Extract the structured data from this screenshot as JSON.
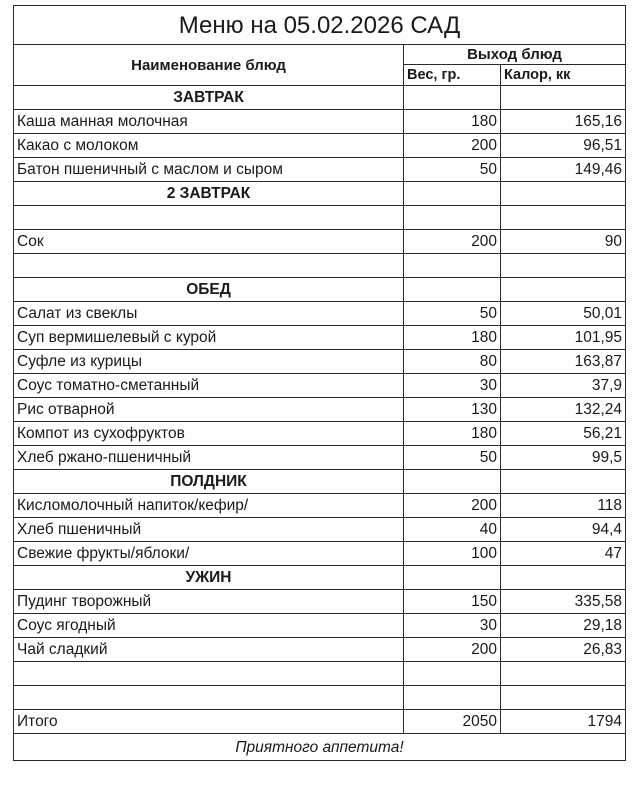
{
  "title": "Меню на 05.02.2026 САД",
  "header": {
    "name_col": "Наименование блюд",
    "output_group": "Выход блюд",
    "weight_col": "Вес, гр.",
    "calories_col": "Калор, кк"
  },
  "rows": [
    {
      "type": "section",
      "name": "ЗАВТРАК"
    },
    {
      "type": "item",
      "name": "Каша манная молочная",
      "weight": "180",
      "calories": "165,16"
    },
    {
      "type": "item",
      "name": "Какао с молоком",
      "weight": "200",
      "calories": "96,51"
    },
    {
      "type": "item",
      "name": "Батон пшеничный с маслом и сыром",
      "weight": "50",
      "calories": "149,46"
    },
    {
      "type": "section",
      "name": "2 ЗАВТРАК"
    },
    {
      "type": "empty"
    },
    {
      "type": "item",
      "name": "Сок",
      "weight": "200",
      "calories": "90"
    },
    {
      "type": "empty"
    },
    {
      "type": "section",
      "name": "ОБЕД"
    },
    {
      "type": "item",
      "name": "Салат из свеклы",
      "weight": "50",
      "calories": "50,01"
    },
    {
      "type": "item",
      "name": "Суп вермишелевый с курой",
      "weight": "180",
      "calories": "101,95"
    },
    {
      "type": "item",
      "name": "Суфле из курицы",
      "weight": "80",
      "calories": "163,87"
    },
    {
      "type": "item",
      "name": "Соус томатно-сметанный",
      "weight": "30",
      "calories": "37,9"
    },
    {
      "type": "item",
      "name": "Рис отварной",
      "weight": "130",
      "calories": "132,24"
    },
    {
      "type": "item",
      "name": "Компот из сухофруктов",
      "weight": "180",
      "calories": "56,21"
    },
    {
      "type": "item",
      "name": "Хлеб ржано-пшеничный",
      "weight": "50",
      "calories": "99,5"
    },
    {
      "type": "section",
      "name": "ПОЛДНИК"
    },
    {
      "type": "item",
      "name": "Кисломолочный напиток/кефир/",
      "weight": "200",
      "calories": "118"
    },
    {
      "type": "item",
      "name": "Хлеб пшеничный",
      "weight": "40",
      "calories": "94,4"
    },
    {
      "type": "item",
      "name": "Свежие фрукты/яблоки/",
      "weight": "100",
      "calories": "47"
    },
    {
      "type": "section",
      "name": "УЖИН"
    },
    {
      "type": "item",
      "name": "Пудинг творожный",
      "weight": "150",
      "calories": "335,58"
    },
    {
      "type": "item",
      "name": "Соус ягодный",
      "weight": "30",
      "calories": "29,18"
    },
    {
      "type": "item",
      "name": "Чай сладкий",
      "weight": "200",
      "calories": "26,83"
    },
    {
      "type": "empty"
    },
    {
      "type": "empty"
    },
    {
      "type": "total",
      "name": "Итого",
      "weight": "2050",
      "calories": "1794"
    }
  ],
  "footer": "Приятного аппетита!"
}
